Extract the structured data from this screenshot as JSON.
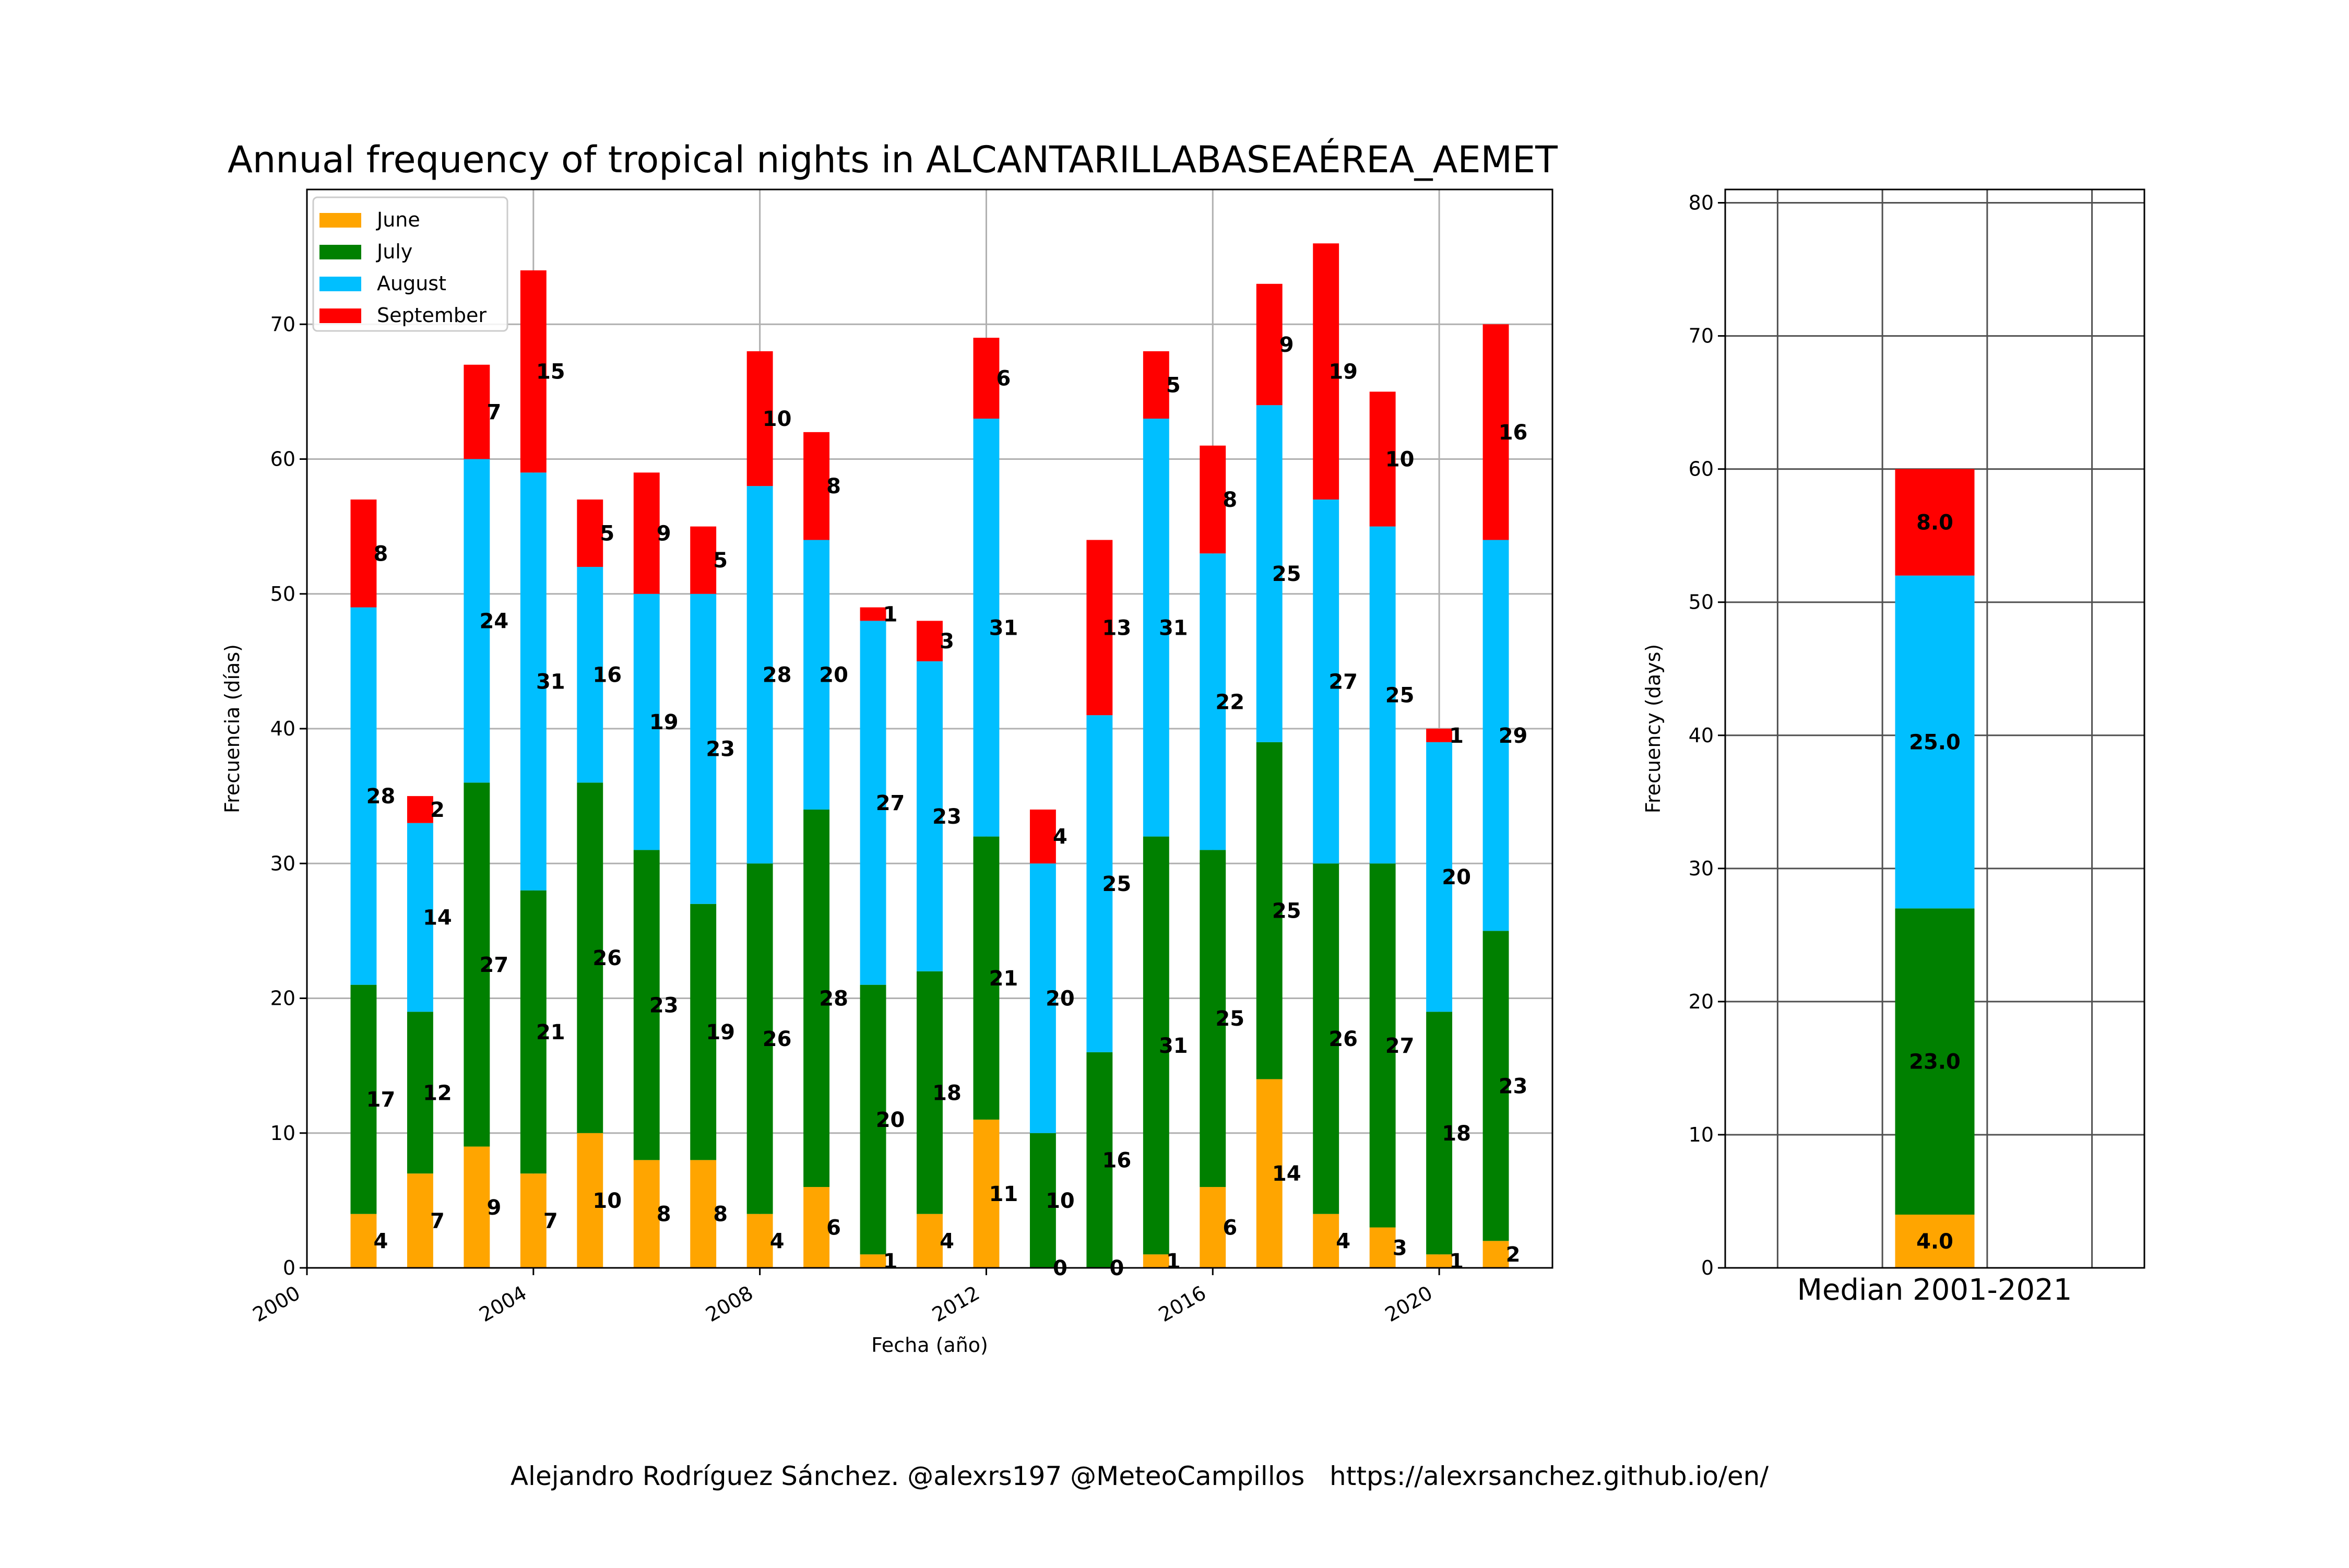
{
  "title": "Annual frequency of tropical nights in ALCANTARILLABASEAÉREA_AEMET",
  "footer": "Alejandro Rodríguez Sánchez. @alexrs197 @MeteoCampillos   https://alexrsanchez.github.io/en/",
  "colors": {
    "June": "#ffa500",
    "July": "#008000",
    "August": "#00bfff",
    "September": "#ff0000"
  },
  "chart_data": [
    {
      "type": "bar",
      "stacked": true,
      "xlabel": "Fecha (año)",
      "ylabel": "Frecuencia (días)",
      "xlim": [
        2000,
        2022
      ],
      "ylim": [
        0,
        80
      ],
      "xticks": [
        "2000",
        "2004",
        "2008",
        "2012",
        "2016",
        "2020"
      ],
      "yticks": [
        0,
        10,
        20,
        30,
        40,
        50,
        60,
        70
      ],
      "grid": true,
      "legend": "top-left",
      "x": [
        2001,
        2002,
        2003,
        2004,
        2005,
        2006,
        2007,
        2008,
        2009,
        2010,
        2011,
        2012,
        2013,
        2014,
        2015,
        2016,
        2017,
        2018,
        2019,
        2020,
        2021
      ],
      "series": [
        {
          "name": "June",
          "values": [
            4,
            7,
            9,
            7,
            10,
            8,
            8,
            4,
            6,
            1,
            4,
            11,
            0,
            0,
            1,
            6,
            14,
            4,
            3,
            1,
            2
          ]
        },
        {
          "name": "July",
          "values": [
            17,
            12,
            27,
            21,
            26,
            23,
            19,
            26,
            28,
            20,
            18,
            21,
            10,
            16,
            31,
            25,
            25,
            26,
            27,
            18,
            23
          ]
        },
        {
          "name": "August",
          "values": [
            28,
            14,
            24,
            31,
            16,
            19,
            23,
            28,
            20,
            27,
            23,
            31,
            20,
            25,
            31,
            22,
            25,
            27,
            25,
            20,
            29
          ]
        },
        {
          "name": "September",
          "values": [
            8,
            2,
            7,
            15,
            5,
            9,
            5,
            10,
            8,
            1,
            3,
            6,
            4,
            13,
            5,
            8,
            9,
            19,
            10,
            1,
            16
          ]
        }
      ]
    },
    {
      "type": "bar",
      "stacked": true,
      "xlabel": "Median 2001-2021",
      "ylabel": "Frecuency (days)",
      "ylim": [
        0,
        81
      ],
      "yticks": [
        0,
        10,
        20,
        30,
        40,
        50,
        60,
        70,
        80
      ],
      "grid": true,
      "series": [
        {
          "name": "June",
          "values": [
            4.0
          ],
          "label": "4.0"
        },
        {
          "name": "July",
          "values": [
            23.0
          ],
          "label": "23.0"
        },
        {
          "name": "August",
          "values": [
            25.0
          ],
          "label": "25.0"
        },
        {
          "name": "September",
          "values": [
            8.0
          ],
          "label": "8.0"
        }
      ]
    }
  ]
}
